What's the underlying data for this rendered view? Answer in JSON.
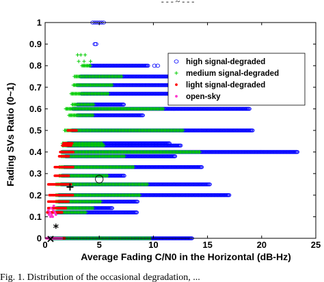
{
  "top_fragment": "- - - ~ - - -",
  "caption": "Fig. 1. Distribution of the occasional degradation, ...",
  "chart_data": {
    "type": "scatter",
    "title": "",
    "xlabel": "Average Fading C/N0 in the Horizontal (dB-Hz)",
    "ylabel": "Fading SVs Ratio (0~1)",
    "xlim": [
      0,
      25
    ],
    "ylim": [
      0,
      1
    ],
    "x_ticks": [
      "0",
      "5",
      "10",
      "15",
      "20",
      "25"
    ],
    "y_ticks": [
      "0",
      "0.1",
      "0.2",
      "0.3",
      "0.4",
      "0.5",
      "0.6",
      "0.7",
      "0.8",
      "0.9",
      "1"
    ],
    "grid": false,
    "legend_position": "top-right",
    "series": [
      {
        "name": "high signal-degraded",
        "color": "#0000ff",
        "marker": "circle-open",
        "bands": [
          {
            "y": 1.0,
            "x": [
              4.4,
              4.6,
              4.8,
              5.0,
              5.2,
              5.4
            ]
          },
          {
            "y": 0.9,
            "x": [
              4.6,
              4.7
            ]
          },
          {
            "y": 0.8,
            "x_range": [
              4.2,
              9.5
            ],
            "extra_x": [
              10.1,
              10.4
            ]
          },
          {
            "y": 0.75,
            "x_range": [
              3.3,
              20.8
            ],
            "extra_x": [
              21.1
            ]
          },
          {
            "y": 0.71,
            "x_range": [
              3.0,
              14.0
            ]
          },
          {
            "y": 0.67,
            "x_range": [
              3.4,
              12.2
            ]
          },
          {
            "y": 0.62,
            "x_range": [
              3.0,
              7.3
            ]
          },
          {
            "y": 0.6,
            "x_range": [
              2.6,
              18.9
            ]
          },
          {
            "y": 0.57,
            "x_range": [
              3.0,
              9.0
            ]
          },
          {
            "y": 0.5,
            "x_range": [
              2.5,
              19.2
            ]
          },
          {
            "y": 0.44,
            "x_range": [
              2.1,
              11.5
            ]
          },
          {
            "y": 0.43,
            "x_range": [
              2.1,
              12.5
            ]
          },
          {
            "y": 0.4,
            "x_range": [
              1.6,
              23.3
            ]
          },
          {
            "y": 0.38,
            "x_range": [
              1.9,
              12.0
            ]
          },
          {
            "y": 0.33,
            "x_range": [
              1.8,
              14.5
            ]
          },
          {
            "y": 0.29,
            "x_range": [
              1.6,
              7.3
            ]
          },
          {
            "y": 0.25,
            "x_range": [
              1.5,
              15.2
            ]
          },
          {
            "y": 0.2,
            "x_range": [
              1.3,
              17.0
            ]
          },
          {
            "y": 0.17,
            "x_range": [
              1.3,
              8.5
            ]
          },
          {
            "y": 0.14,
            "x_range": [
              1.2,
              6.2
            ]
          },
          {
            "y": 0.12,
            "x_range": [
              1.0,
              8.5
            ]
          },
          {
            "y": 0.0,
            "x_range": [
              0.5,
              13.6
            ]
          }
        ]
      },
      {
        "name": "medium signal-degraded",
        "color": "#00cc00",
        "marker": "plus",
        "bands": [
          {
            "y": 0.85,
            "x": [
              3.0,
              3.3,
              3.7
            ]
          },
          {
            "y": 0.82,
            "x": [
              3.1,
              3.6,
              4.2
            ]
          },
          {
            "y": 0.8,
            "x_range": [
              3.4,
              4.2
            ]
          },
          {
            "y": 0.75,
            "x_range": [
              2.7,
              7.1
            ]
          },
          {
            "y": 0.71,
            "x_range": [
              2.6,
              6.2
            ]
          },
          {
            "y": 0.67,
            "x_range": [
              2.4,
              5.9
            ]
          },
          {
            "y": 0.62,
            "x_range": [
              2.5,
              4.5
            ]
          },
          {
            "y": 0.6,
            "x_range": [
              1.9,
              11.0
            ]
          },
          {
            "y": 0.57,
            "x_range": [
              2.2,
              4.5
            ]
          },
          {
            "y": 0.5,
            "x_range": [
              1.8,
              12.8
            ]
          },
          {
            "y": 0.44,
            "x_range": [
              1.6,
              5.3
            ]
          },
          {
            "y": 0.43,
            "x_range": [
              1.6,
              5.5
            ]
          },
          {
            "y": 0.4,
            "x_range": [
              1.5,
              14.3
            ]
          },
          {
            "y": 0.38,
            "x_range": [
              1.5,
              7.4
            ]
          },
          {
            "y": 0.33,
            "x_range": [
              1.3,
              8.2
            ]
          },
          {
            "y": 0.29,
            "x_range": [
              1.3,
              5.8
            ]
          },
          {
            "y": 0.25,
            "x_range": [
              1.0,
              9.5
            ]
          },
          {
            "y": 0.2,
            "x_range": [
              1.0,
              8.8
            ]
          },
          {
            "y": 0.17,
            "x_range": [
              1.0,
              5.2
            ]
          },
          {
            "y": 0.14,
            "x_range": [
              1.0,
              4.5
            ]
          },
          {
            "y": 0.12,
            "x_range": [
              0.9,
              3.8
            ]
          },
          {
            "y": 0.0,
            "x_range": [
              0.5,
              9.8
            ]
          }
        ]
      },
      {
        "name": "light signal-degraded",
        "color": "#ff0000",
        "marker": "dot",
        "bands": [
          {
            "y": 0.5,
            "x_range": [
              2.1,
              2.9
            ]
          },
          {
            "y": 0.44,
            "x_range": [
              1.7,
              2.5
            ]
          },
          {
            "y": 0.43,
            "x_range": [
              1.6,
              2.4
            ]
          },
          {
            "y": 0.4,
            "x_range": [
              1.4,
              2.6
            ]
          },
          {
            "y": 0.38,
            "x_range": [
              1.3,
              2.2
            ]
          },
          {
            "y": 0.33,
            "x_range": [
              0.9,
              2.6
            ]
          },
          {
            "y": 0.29,
            "x_range": [
              0.9,
              2.2
            ]
          },
          {
            "y": 0.25,
            "x_range": [
              0.3,
              2.4
            ]
          },
          {
            "y": 0.2,
            "x_range": [
              0.4,
              2.6
            ]
          },
          {
            "y": 0.17,
            "x_range": [
              0.3,
              2.2
            ]
          },
          {
            "y": 0.14,
            "x_range": [
              0.3,
              1.9
            ]
          },
          {
            "y": 0.12,
            "x_range": [
              0.2,
              1.6
            ]
          },
          {
            "y": 0.0,
            "x_range": [
              0.2,
              1.8
            ]
          }
        ]
      },
      {
        "name": "open-sky",
        "color": "#ff33cc",
        "marker": "dot",
        "points": [
          {
            "x": 0.3,
            "y": 0.13
          },
          {
            "x": 0.45,
            "y": 0.12
          },
          {
            "x": 0.6,
            "y": 0.11
          },
          {
            "x": 0.75,
            "y": 0.13
          },
          {
            "x": 0.9,
            "y": 0.12
          },
          {
            "x": 0.5,
            "y": 0.1
          },
          {
            "x": 0.7,
            "y": 0.1
          },
          {
            "x": 0.35,
            "y": 0.11
          },
          {
            "x": 1.0,
            "y": 0.11
          },
          {
            "x": 0.55,
            "y": 0.14
          },
          {
            "x": 0.8,
            "y": 0.15
          }
        ],
        "bands": [
          {
            "y": 0.0,
            "x_range": [
              0.1,
              1.6
            ]
          }
        ]
      }
    ],
    "markers": [
      {
        "symbol": "○",
        "x": 5.0,
        "y": 0.28
      },
      {
        "symbol": "+",
        "x": 2.3,
        "y": 0.24
      },
      {
        "symbol": "*",
        "x": 1.0,
        "y": 0.05
      },
      {
        "symbol": "×",
        "x": 0.5,
        "y": 0.0
      }
    ]
  }
}
